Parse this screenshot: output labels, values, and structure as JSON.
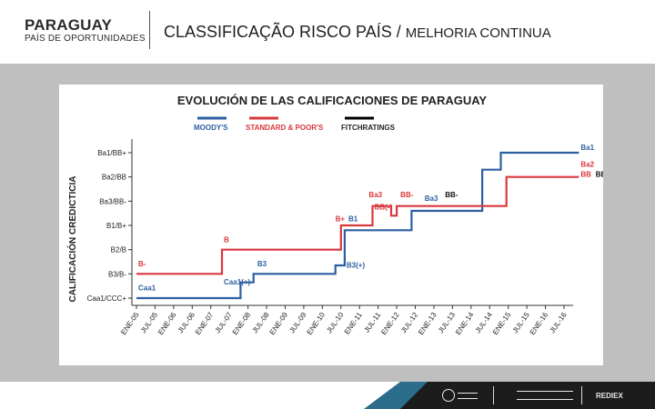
{
  "header": {
    "brand_main": "PARAGUAY",
    "brand_sub": "PAÍS DE OPORTUNIDADES",
    "title_main": "CLASSIFICAÇÃO RISCO PAÍS / ",
    "title_sub": "MELHORIA  CONTINUA"
  },
  "colors": {
    "moodys": "#2e5fa3",
    "sp": "#d9383e",
    "fitch": "#000000",
    "slide_background": "#bfbfbf"
  },
  "footer": {
    "logos": [
      {
        "name": "gobierno-nacional-seal",
        "text": ""
      },
      {
        "name": "rediex-logo",
        "text": ""
      },
      {
        "name": "rediex-label",
        "text": "REDIEX"
      }
    ]
  },
  "chart_data": {
    "type": "line",
    "title": "EVOLUCIÓN DE LAS CALIFICACIONES DE PARAGUAY",
    "ylabel": "CALIFICACIÓN CREDICTICIA",
    "xlabel": "",
    "categories": [
      "ENE-05",
      "JUL-05",
      "ENE-06",
      "JUL-06",
      "ENE-07",
      "JUL-07",
      "ENE-08",
      "JUL-08",
      "ENE-09",
      "JUL-09",
      "ENE-10",
      "JUL-10",
      "ENE-11",
      "JUL-11",
      "ENE-12",
      "JUL-12",
      "ENE-13",
      "JUL-13",
      "ENE-14",
      "JUL-14",
      "ENE-15",
      "JUL-15",
      "ENE-16",
      "JUL-16"
    ],
    "y_levels": [
      "Caa1/CCC+",
      "B3/B-",
      "B2/B",
      "B1/B+",
      "Ba3/BB-",
      "Ba2/BB",
      "Ba1/BB+"
    ],
    "series": [
      {
        "name": "MOODY'S",
        "points": [
          [
            0,
            0
          ],
          [
            5.6,
            0
          ],
          [
            5.6,
            0.65
          ],
          [
            6.3,
            0.65
          ],
          [
            6.3,
            1
          ],
          [
            10.7,
            1
          ],
          [
            10.7,
            1.35
          ],
          [
            11.2,
            1.35
          ],
          [
            11.2,
            2.8
          ],
          [
            14.8,
            2.8
          ],
          [
            14.8,
            3.6
          ],
          [
            18.6,
            3.6
          ],
          [
            18.6,
            5.3
          ],
          [
            19.6,
            5.3
          ],
          [
            19.6,
            6
          ],
          [
            23.8,
            6
          ]
        ],
        "labels": [
          {
            "text": "Caa1",
            "x": 0.1,
            "y": 0.2
          },
          {
            "text": "Caa1(+)",
            "x": 4.7,
            "y": 0.45
          },
          {
            "text": "B3",
            "x": 6.5,
            "y": 1.2
          },
          {
            "text": "B3(+)",
            "x": 11.3,
            "y": 1.15
          },
          {
            "text": "B1",
            "x": 11.4,
            "y": 3.05
          },
          {
            "text": "Ba3",
            "x": 15.5,
            "y": 3.9
          },
          {
            "text": "Ba1",
            "x": 23.9,
            "y": 6
          }
        ]
      },
      {
        "name": "STANDARD & POOR'S",
        "points": [
          [
            0,
            1
          ],
          [
            4.6,
            1
          ],
          [
            4.6,
            2
          ],
          [
            11,
            2
          ],
          [
            11,
            3
          ],
          [
            12.7,
            3
          ],
          [
            12.7,
            3.8
          ],
          [
            13.7,
            3.8
          ],
          [
            13.7,
            3.4
          ],
          [
            14,
            3.4
          ],
          [
            14,
            3.8
          ],
          [
            19.9,
            3.8
          ],
          [
            19.9,
            5
          ],
          [
            23.8,
            5
          ]
        ],
        "labels": [
          {
            "text": "B-",
            "x": 0.1,
            "y": 1.2
          },
          {
            "text": "B",
            "x": 4.7,
            "y": 2.2
          },
          {
            "text": "B+",
            "x": 10.7,
            "y": 3.05
          },
          {
            "text": "Ba3",
            "x": 12.5,
            "y": 4.05
          },
          {
            "text": "BB(-)",
            "x": 12.8,
            "y": 3.55
          },
          {
            "text": "BB-",
            "x": 14.2,
            "y": 4.05
          },
          {
            "text": "Ba2",
            "x": 23.9,
            "y": 5.3
          },
          {
            "text": "BB",
            "x": 23.9,
            "y": 4.9
          }
        ]
      },
      {
        "name": "FITCHRATINGS",
        "points": [],
        "labels": [
          {
            "text": "BB-",
            "x": 16.6,
            "y": 4.05
          },
          {
            "text": "BB",
            "x": 24.7,
            "y": 4.9
          }
        ]
      }
    ],
    "grid": false,
    "legend": "top"
  }
}
